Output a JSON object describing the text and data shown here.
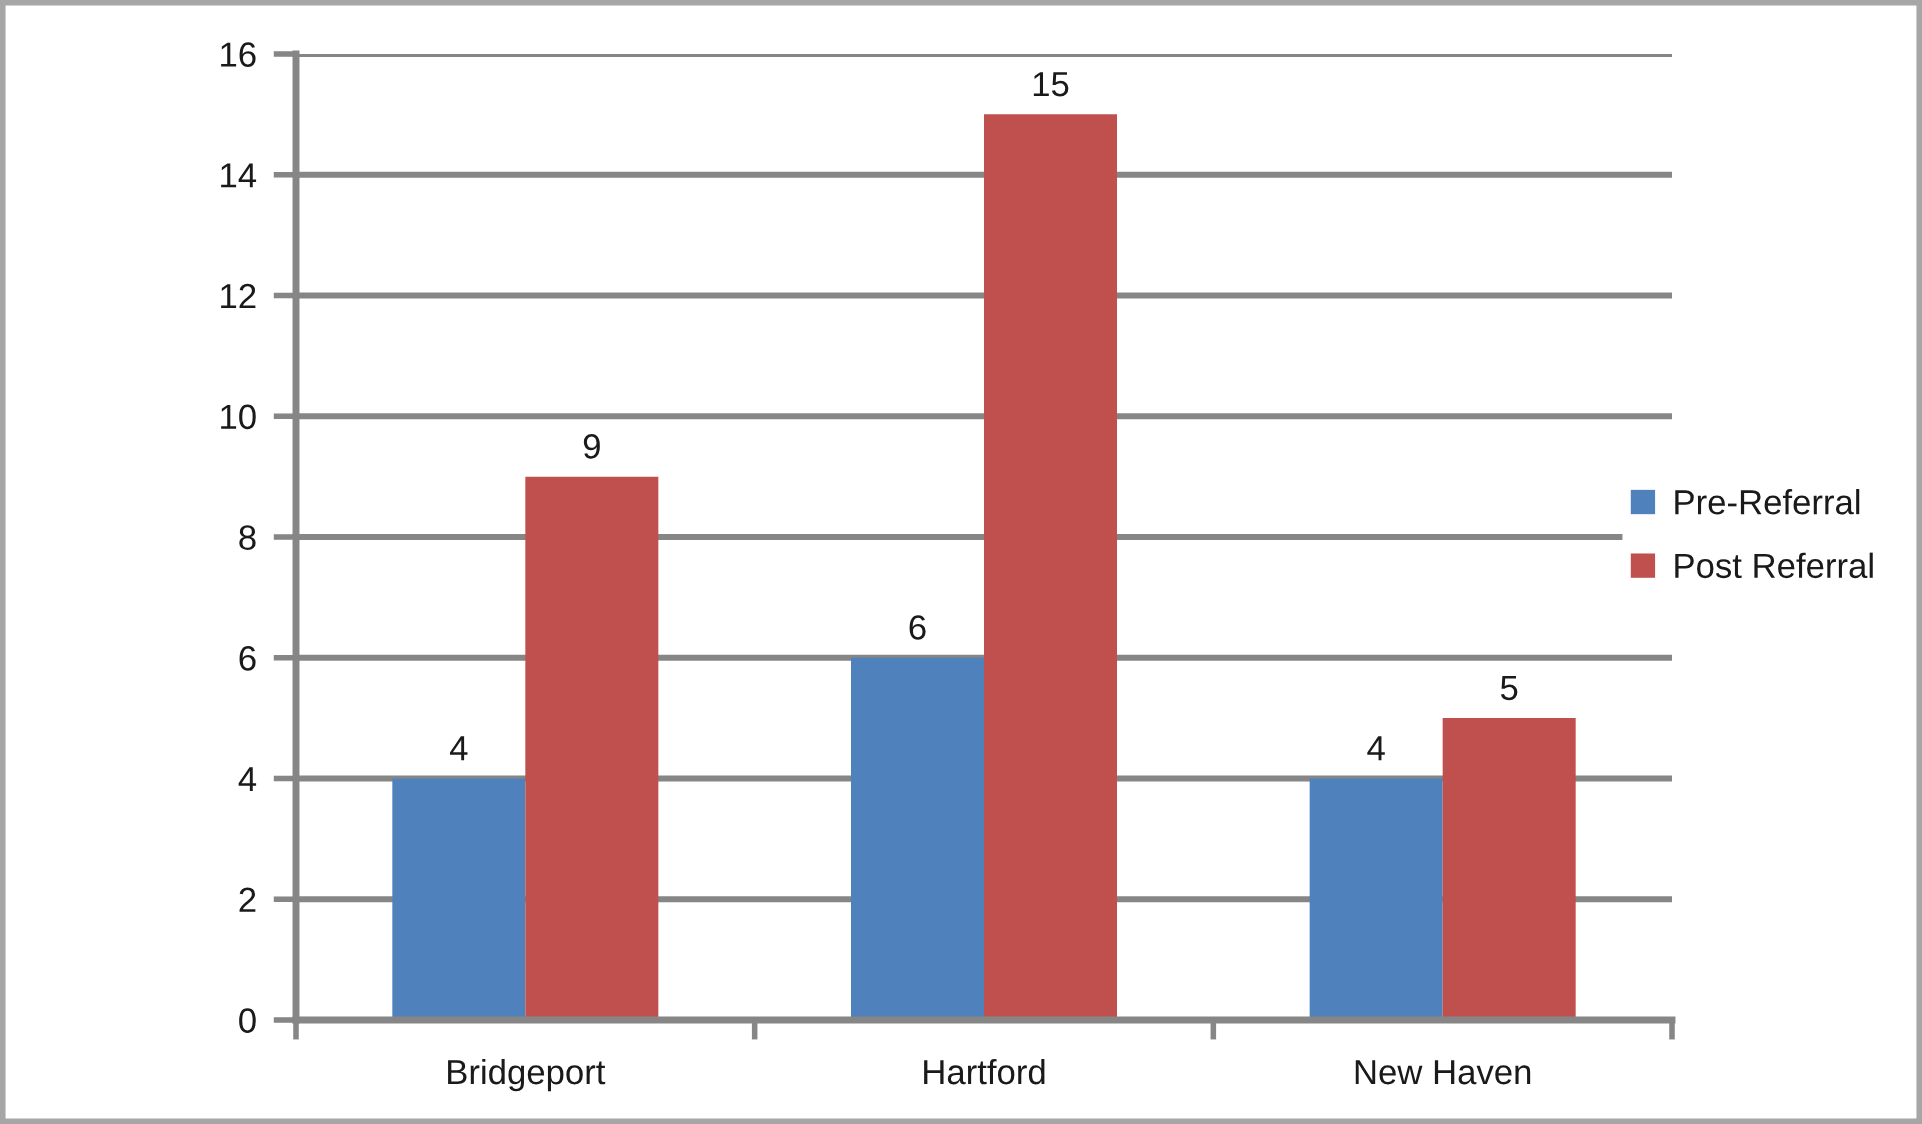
{
  "chart_data": {
    "type": "bar",
    "categories": [
      "Bridgeport",
      "Hartford",
      "New Haven"
    ],
    "series": [
      {
        "name": "Pre-Referral",
        "color": "#4f81bd",
        "values": [
          4,
          6,
          4
        ]
      },
      {
        "name": "Post Referral",
        "color": "#c0504d",
        "values": [
          9,
          15,
          5
        ]
      }
    ],
    "ylim": [
      0,
      16
    ],
    "yticks": [
      0,
      2,
      4,
      6,
      8,
      10,
      12,
      14,
      16
    ],
    "grid": "y",
    "legend": "right",
    "data_labels": true
  }
}
